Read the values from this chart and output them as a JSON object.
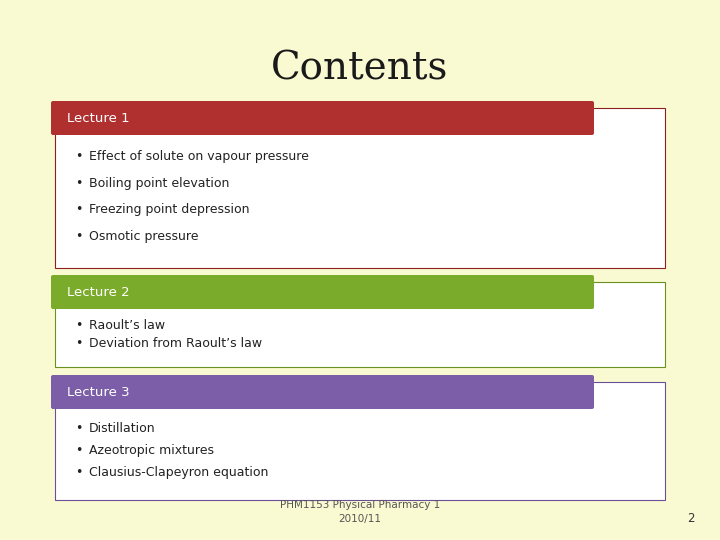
{
  "title": "Contents",
  "background_color": "#FAFAD2",
  "title_fontsize": 28,
  "title_color": "#1a1a1a",
  "lectures": [
    {
      "label": "Lecture 1",
      "header_color": "#B03030",
      "border_color": "#8B2020",
      "bullets": [
        "Effect of solute on vapour pressure",
        "Boiling point elevation",
        "Freezing point depression",
        "Osmotic pressure"
      ]
    },
    {
      "label": "Lecture 2",
      "header_color": "#7AAB2A",
      "border_color": "#6A9020",
      "bullets": [
        "Raoult’s law",
        "Deviation from Raoult’s law"
      ]
    },
    {
      "label": "Lecture 3",
      "header_color": "#7B5EA7",
      "border_color": "#6A4E96",
      "bullets": [
        "Distillation",
        "Azeotropic mixtures",
        "Clausius-Clapeyron equation"
      ]
    }
  ],
  "footer_text": "PHM1153 Physical Pharmacy 1\n2010/11",
  "footer_number": "2",
  "label_fontsize": 9.5,
  "bullet_fontsize": 9,
  "footer_fontsize": 7.5
}
